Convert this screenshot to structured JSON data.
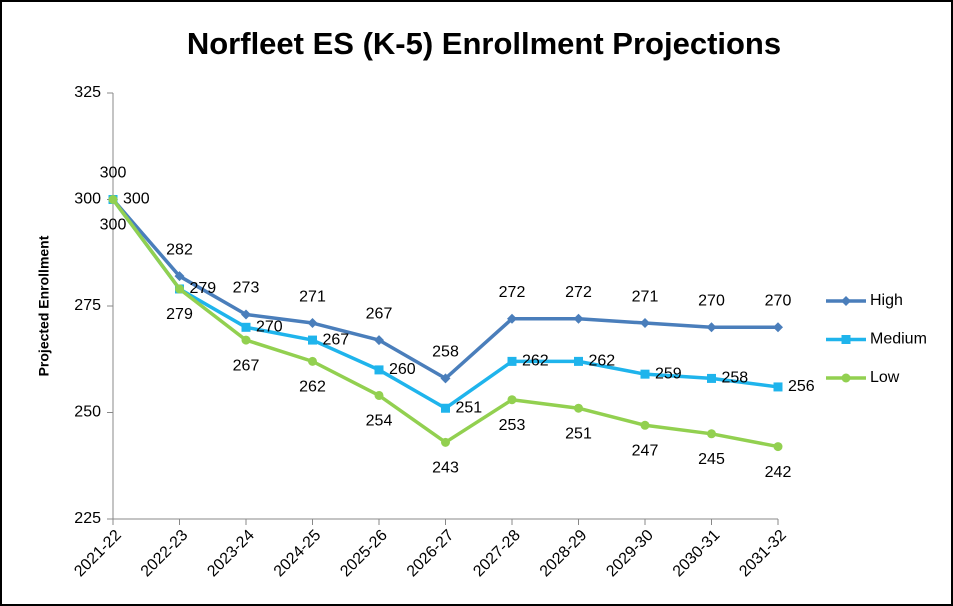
{
  "chart_data": {
    "type": "line",
    "title": "Norfleet ES (K-5) Enrollment Projections",
    "y_label": "Projected Enrollment",
    "categories": [
      "2021-22",
      "2022-23",
      "2023-24",
      "2024-25",
      "2025-26",
      "2026-27",
      "2027-28",
      "2028-29",
      "2029-30",
      "2030-31",
      "2031-32"
    ],
    "series": [
      {
        "name": "High",
        "color": "#4a7ebb",
        "marker": "diamond",
        "values": [
          300,
          282,
          273,
          271,
          267,
          258,
          272,
          272,
          271,
          270,
          270
        ]
      },
      {
        "name": "Medium",
        "color": "#1fb4ec",
        "marker": "square",
        "values": [
          300,
          279,
          270,
          267,
          260,
          251,
          262,
          262,
          259,
          258,
          256
        ]
      },
      {
        "name": "Low",
        "color": "#92d050",
        "marker": "circle",
        "values": [
          300,
          279,
          267,
          262,
          254,
          243,
          253,
          251,
          247,
          245,
          242
        ]
      }
    ],
    "ylim": [
      225,
      325
    ],
    "yticks": [
      225,
      250,
      275,
      300,
      325
    ],
    "grid": false,
    "legend": "right"
  }
}
